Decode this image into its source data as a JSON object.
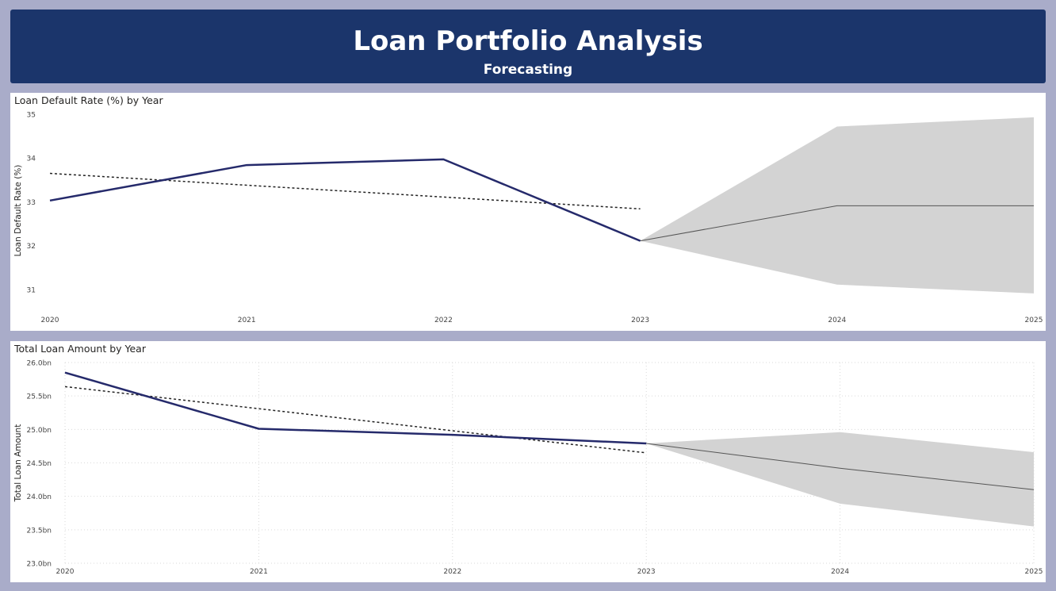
{
  "header": {
    "title": "Loan Portfolio Analysis",
    "subtitle": "Forecasting"
  },
  "colors": {
    "header_bg": "#1b356b",
    "actual_line": "#252a6b",
    "trend_line": "#222222",
    "forecast_line": "#555555",
    "forecast_band": "#d3d3d3",
    "page_bg": "#a9acc9"
  },
  "chart_data": [
    {
      "type": "line",
      "title": "Loan Default Rate (%) by Year",
      "xlabel": "",
      "ylabel": "Loan Default Rate (%)",
      "categories": [
        "2020",
        "2021",
        "2022",
        "2023",
        "2024",
        "2025"
      ],
      "ylim": [
        30.6,
        35
      ],
      "yticks": [
        31,
        32,
        33,
        34,
        35
      ],
      "ytick_labels": [
        "31",
        "32",
        "33",
        "34",
        "35"
      ],
      "grid": false,
      "series": [
        {
          "role": "actual",
          "x": [
            "2020",
            "2021",
            "2022",
            "2023"
          ],
          "values": [
            33.03,
            33.84,
            33.97,
            32.11
          ]
        },
        {
          "role": "trend",
          "x": [
            "2020",
            "2023"
          ],
          "values": [
            33.65,
            32.84
          ]
        },
        {
          "role": "forecast",
          "x": [
            "2023",
            "2024",
            "2025"
          ],
          "values": [
            32.11,
            32.91,
            32.91
          ]
        },
        {
          "role": "forecast_upper",
          "x": [
            "2023",
            "2024",
            "2025"
          ],
          "values": [
            32.11,
            34.72,
            34.93
          ]
        },
        {
          "role": "forecast_lower",
          "x": [
            "2023",
            "2024",
            "2025"
          ],
          "values": [
            32.11,
            31.11,
            30.91
          ]
        }
      ]
    },
    {
      "type": "line",
      "title": "Total Loan Amount by Year",
      "xlabel": "",
      "ylabel": "Total Loan Amount",
      "categories": [
        "2020",
        "2021",
        "2022",
        "2023",
        "2024",
        "2025"
      ],
      "ylim": [
        23.0,
        26.0
      ],
      "yticks": [
        23.0,
        23.5,
        24.0,
        24.5,
        25.0,
        25.5,
        26.0
      ],
      "ytick_labels": [
        "23.0bn",
        "23.5bn",
        "24.0bn",
        "24.5bn",
        "25.0bn",
        "25.5bn",
        "26.0bn"
      ],
      "grid": true,
      "series": [
        {
          "role": "actual",
          "x": [
            "2020",
            "2021",
            "2022",
            "2023"
          ],
          "values": [
            25.85,
            25.01,
            24.92,
            24.79
          ]
        },
        {
          "role": "trend",
          "x": [
            "2020",
            "2023"
          ],
          "values": [
            25.64,
            24.65
          ]
        },
        {
          "role": "forecast",
          "x": [
            "2023",
            "2024",
            "2025"
          ],
          "values": [
            24.79,
            24.42,
            24.1
          ]
        },
        {
          "role": "forecast_upper",
          "x": [
            "2023",
            "2024",
            "2025"
          ],
          "values": [
            24.79,
            24.96,
            24.66
          ]
        },
        {
          "role": "forecast_lower",
          "x": [
            "2023",
            "2024",
            "2025"
          ],
          "values": [
            24.79,
            23.89,
            23.55
          ]
        }
      ]
    }
  ]
}
